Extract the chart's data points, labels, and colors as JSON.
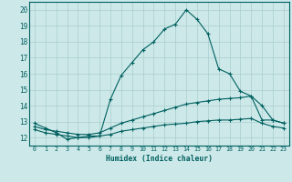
{
  "xlabel": "Humidex (Indice chaleur)",
  "xlim": [
    -0.5,
    23.5
  ],
  "ylim": [
    11.5,
    20.5
  ],
  "yticks": [
    12,
    13,
    14,
    15,
    16,
    17,
    18,
    19,
    20
  ],
  "xticks": [
    0,
    1,
    2,
    3,
    4,
    5,
    6,
    7,
    8,
    9,
    10,
    11,
    12,
    13,
    14,
    15,
    16,
    17,
    18,
    19,
    20,
    21,
    22,
    23
  ],
  "background_color": "#cce8e8",
  "grid_color": "#aacece",
  "line_color": "#006060",
  "line1_y": [
    12.9,
    12.6,
    12.3,
    11.9,
    12.0,
    12.1,
    12.1,
    14.4,
    15.9,
    16.7,
    17.5,
    18.0,
    18.8,
    19.1,
    20.0,
    19.4,
    18.5,
    16.3,
    16.0,
    14.9,
    14.6,
    13.1,
    13.1,
    12.9
  ],
  "line2_y": [
    12.7,
    12.5,
    12.4,
    12.3,
    12.2,
    12.2,
    12.3,
    12.6,
    12.9,
    13.1,
    13.3,
    13.5,
    13.7,
    13.9,
    14.1,
    14.2,
    14.3,
    14.4,
    14.45,
    14.5,
    14.6,
    14.0,
    13.1,
    12.9
  ],
  "line3_y": [
    12.5,
    12.3,
    12.2,
    12.1,
    12.0,
    12.0,
    12.1,
    12.2,
    12.4,
    12.5,
    12.6,
    12.7,
    12.8,
    12.85,
    12.9,
    13.0,
    13.05,
    13.1,
    13.1,
    13.15,
    13.2,
    12.9,
    12.7,
    12.6
  ]
}
